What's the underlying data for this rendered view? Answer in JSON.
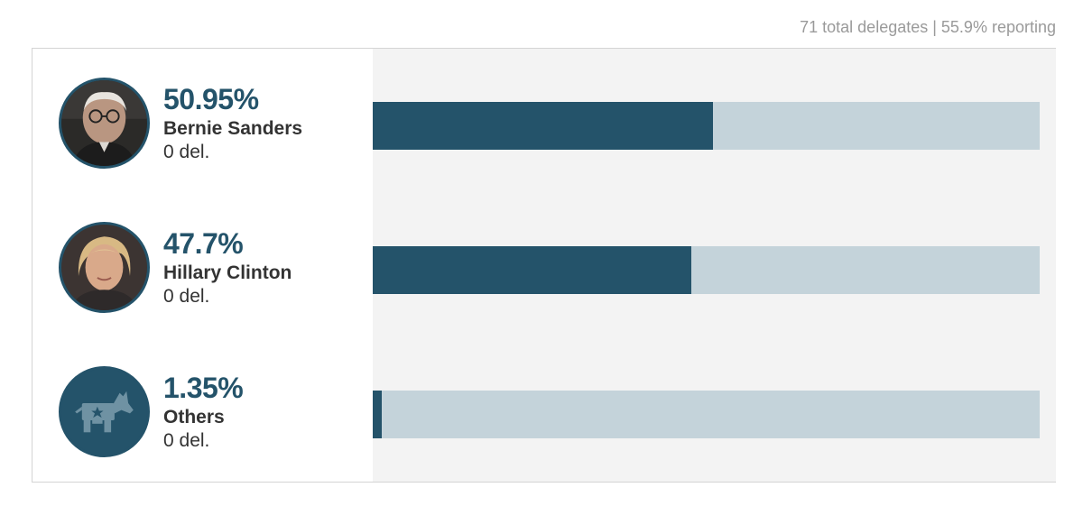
{
  "header": {
    "summary": "71 total delegates | 55.9% reporting"
  },
  "colors": {
    "accent": "#24536a",
    "track": "#c4d3da",
    "panel_bg": "#f3f3f3"
  },
  "chart_data": {
    "type": "bar",
    "orientation": "horizontal",
    "categories": [
      "Bernie Sanders",
      "Hillary Clinton",
      "Others"
    ],
    "values": [
      50.95,
      47.7,
      1.35
    ],
    "value_labels": [
      "50.95%",
      "47.7%",
      "1.35%"
    ],
    "delegates": [
      "0 del.",
      "0 del.",
      "0 del."
    ],
    "avatar_icons": [
      "bernie-sanders-photo",
      "hillary-clinton-photo",
      "democrat-donkey-icon"
    ],
    "xlim": [
      0,
      100
    ],
    "grid": false,
    "legend": "none"
  }
}
